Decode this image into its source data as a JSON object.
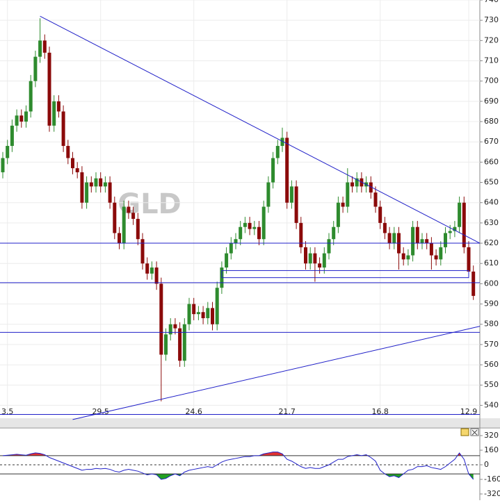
{
  "chart_data": [
    {
      "type": "candlestick",
      "title": "GLD",
      "categories": [
        null,
        "3.5",
        null,
        null,
        null,
        null,
        null,
        null,
        null,
        null,
        null,
        null,
        null,
        null,
        null,
        null,
        null,
        null,
        null,
        null,
        null,
        "29.5",
        null,
        null,
        null,
        null,
        null,
        null,
        null,
        null,
        null,
        null,
        null,
        null,
        null,
        null,
        null,
        null,
        null,
        null,
        null,
        "24.6",
        null,
        null,
        null,
        null,
        null,
        null,
        null,
        null,
        null,
        null,
        null,
        null,
        null,
        null,
        null,
        null,
        null,
        null,
        null,
        "21.7",
        null,
        null,
        null,
        null,
        null,
        null,
        null,
        null,
        null,
        null,
        null,
        null,
        null,
        null,
        null,
        null,
        null,
        null,
        null,
        "16.8",
        null,
        null,
        null,
        null,
        null,
        null,
        null,
        null,
        null,
        null,
        null,
        null,
        null,
        null,
        null,
        null,
        null,
        null,
        "12.9",
        null
      ],
      "open": [
        655,
        662,
        668,
        678,
        683,
        680,
        685,
        700,
        712,
        720,
        714,
        678,
        690,
        685,
        668,
        662,
        657,
        655,
        640,
        650,
        648,
        652,
        648,
        650,
        640,
        625,
        620,
        638,
        635,
        632,
        622,
        610,
        605,
        608,
        600,
        565,
        575,
        580,
        578,
        562,
        580,
        590,
        585,
        586,
        583,
        588,
        580,
        598,
        608,
        615,
        620,
        622,
        628,
        630,
        627,
        628,
        622,
        638,
        650,
        662,
        668,
        672,
        640,
        648,
        630,
        618,
        610,
        615,
        610,
        608,
        615,
        622,
        628,
        640,
        638,
        650,
        648,
        652,
        648,
        650,
        645,
        638,
        630,
        625,
        620,
        625,
        615,
        612,
        614,
        628,
        620,
        622,
        620,
        614,
        612,
        618,
        625,
        626,
        628,
        640,
        618,
        606
      ],
      "high": [
        665,
        671,
        681,
        686,
        686,
        688,
        703,
        715,
        731,
        723,
        717,
        693,
        693,
        688,
        671,
        665,
        660,
        658,
        653,
        653,
        655,
        655,
        653,
        653,
        643,
        628,
        641,
        641,
        638,
        635,
        625,
        613,
        611,
        611,
        603,
        578,
        583,
        583,
        581,
        583,
        593,
        593,
        589,
        589,
        591,
        591,
        601,
        611,
        618,
        623,
        625,
        631,
        633,
        633,
        631,
        631,
        641,
        653,
        665,
        671,
        677,
        675,
        651,
        651,
        633,
        621,
        618,
        618,
        613,
        618,
        625,
        631,
        643,
        643,
        657,
        653,
        655,
        655,
        653,
        653,
        648,
        641,
        633,
        628,
        628,
        628,
        618,
        617,
        631,
        631,
        625,
        625,
        623,
        617,
        621,
        628,
        629,
        631,
        643,
        643,
        621,
        609
      ],
      "low": [
        652,
        659,
        665,
        675,
        677,
        677,
        682,
        697,
        709,
        711,
        675,
        675,
        682,
        665,
        659,
        654,
        652,
        637,
        637,
        645,
        645,
        645,
        645,
        637,
        622,
        617,
        617,
        632,
        629,
        619,
        607,
        602,
        602,
        597,
        542,
        562,
        572,
        575,
        559,
        559,
        577,
        582,
        582,
        580,
        580,
        577,
        577,
        595,
        605,
        612,
        617,
        619,
        625,
        624,
        624,
        619,
        619,
        635,
        647,
        659,
        665,
        637,
        637,
        627,
        615,
        607,
        607,
        601,
        605,
        605,
        612,
        619,
        625,
        635,
        635,
        645,
        645,
        645,
        645,
        642,
        635,
        627,
        622,
        617,
        617,
        607,
        609,
        609,
        611,
        617,
        617,
        617,
        607,
        609,
        609,
        615,
        622,
        623,
        625,
        615,
        603,
        592
      ],
      "close": [
        662,
        668,
        678,
        683,
        680,
        685,
        700,
        712,
        720,
        714,
        678,
        690,
        685,
        668,
        662,
        657,
        655,
        640,
        650,
        648,
        652,
        648,
        650,
        640,
        625,
        620,
        638,
        635,
        632,
        622,
        610,
        605,
        608,
        600,
        565,
        575,
        580,
        578,
        562,
        580,
        590,
        585,
        586,
        583,
        588,
        580,
        598,
        608,
        615,
        620,
        622,
        628,
        630,
        627,
        628,
        622,
        638,
        650,
        662,
        668,
        672,
        640,
        648,
        630,
        618,
        610,
        615,
        610,
        608,
        615,
        622,
        628,
        640,
        638,
        650,
        648,
        652,
        648,
        650,
        645,
        638,
        630,
        625,
        620,
        625,
        615,
        612,
        614,
        628,
        620,
        622,
        620,
        614,
        612,
        618,
        625,
        626,
        628,
        640,
        618,
        606,
        594
      ],
      "up_color": "#2e8b2e",
      "down_color": "#8b0a0a",
      "line_color": "#1f1fc8",
      "ylim": [
        535,
        740
      ],
      "yticks": [
        540,
        550,
        560,
        570,
        580,
        590,
        600,
        610,
        620,
        630,
        640,
        650,
        660,
        670,
        680,
        690,
        700,
        710,
        720,
        730,
        740
      ],
      "grid": true,
      "levels": [
        620,
        600.5,
        576,
        535.5
      ],
      "trendlines": [
        {
          "from": [
            8,
            732
          ],
          "to": [
            102.4,
            620
          ]
        },
        {
          "from": [
            15,
            533
          ],
          "to": [
            102.4,
            579
          ]
        }
      ],
      "box": {
        "from": 47,
        "to": 100,
        "low": 603,
        "high": 606.5
      }
    },
    {
      "type": "line",
      "values": [
        100,
        105,
        110,
        115,
        110,
        105,
        120,
        130,
        125,
        110,
        80,
        60,
        40,
        20,
        0,
        -20,
        -40,
        -60,
        -50,
        -50,
        -40,
        -45,
        -40,
        -50,
        -70,
        -80,
        -60,
        -50,
        -60,
        -70,
        -90,
        -110,
        -100,
        -110,
        -160,
        -150,
        -120,
        -100,
        -120,
        -80,
        -60,
        -50,
        -40,
        -30,
        -20,
        -30,
        0,
        30,
        50,
        60,
        70,
        80,
        90,
        90,
        100,
        100,
        120,
        130,
        140,
        140,
        120,
        60,
        40,
        10,
        -20,
        -40,
        -30,
        -40,
        -40,
        -20,
        0,
        30,
        60,
        60,
        90,
        100,
        110,
        100,
        110,
        80,
        40,
        -60,
        -100,
        -130,
        -120,
        -140,
        -100,
        -60,
        -50,
        -20,
        -20,
        -10,
        -30,
        -40,
        -50,
        -20,
        20,
        60,
        130,
        60,
        -100,
        -160
      ],
      "color": "#1f1fc8",
      "fill_above": "#e03232",
      "fill_below": "#22a022",
      "ylim": [
        -320,
        320
      ],
      "yticks": [
        320,
        160,
        0,
        -160,
        -320
      ],
      "levels": [
        100,
        0,
        -100
      ]
    }
  ]
}
